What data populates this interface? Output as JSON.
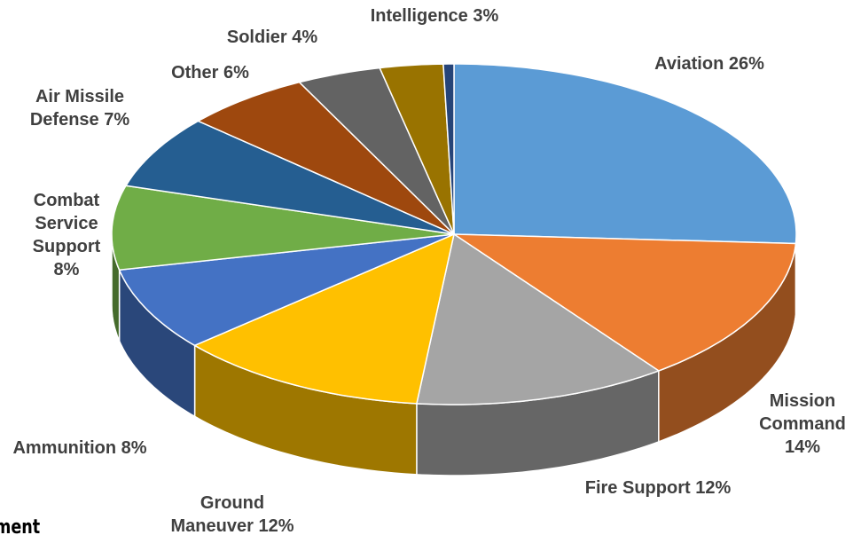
{
  "chart_data": {
    "type": "pie3d",
    "categories": [
      "Aviation",
      "Mission Command",
      "Fire Support",
      "Ground Maneuver",
      "Ammunition",
      "Combat Service Support",
      "Air Missile Defense",
      "Other",
      "Soldier",
      "Intelligence",
      null
    ],
    "values": [
      26,
      14,
      12,
      12,
      8,
      8,
      7,
      6,
      4,
      3,
      0.5
    ],
    "value_labels": [
      "26%",
      "14%",
      "12%",
      "12%",
      "8%",
      "8%",
      "7%",
      "6%",
      "4%",
      "3%",
      null
    ],
    "colors": [
      "#5b9bd5",
      "#ed7d31",
      "#a5a5a5",
      "#ffc000",
      "#4472c4",
      "#70ad47",
      "#255e91",
      "#9e480e",
      "#636363",
      "#997300",
      "#264478"
    ],
    "fragment_text": "ment"
  }
}
